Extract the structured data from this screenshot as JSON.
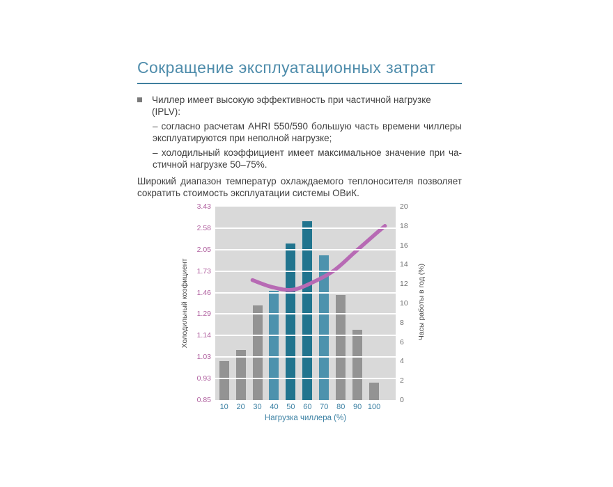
{
  "page": {
    "title": "Сокращение эксплуатационных затрат"
  },
  "content": {
    "bullet_item": "Чиллер имеет высокую эффективность при частичной нагрузке (IPLV):",
    "sub_items": [
      {
        "lines": [
          "– согласно расчетам AHRI 550/590 большую часть времени чиллеры",
          "эксплуатируются при неполной нагрузке;"
        ]
      },
      {
        "lines": [
          "– холодильный коэффициент имеет максимальное значение при ча-",
          "стичной нагрузке 50–75%."
        ]
      }
    ],
    "closing": {
      "lines": [
        "Широкий диапазон температур охлаждаемого теплоносителя позволяет",
        "сократить стоимость эксплуатации системы ОВиК."
      ]
    }
  },
  "chart_data": {
    "type": "bar",
    "title": "",
    "categories": [
      "10",
      "20",
      "30",
      "40",
      "50",
      "60",
      "70",
      "80",
      "90",
      "100"
    ],
    "bar_series": {
      "name": "Часы работы в год (%)",
      "axis": "right",
      "values": [
        4.0,
        5.2,
        9.8,
        11.3,
        16.2,
        18.5,
        15.0,
        10.9,
        7.3,
        1.8
      ]
    },
    "bar_color_keys": [
      "bar_gray",
      "bar_gray",
      "bar_gray",
      "bar_teal_light",
      "bar_teal_dark",
      "bar_teal_dark",
      "bar_teal_light",
      "bar_gray",
      "bar_gray",
      "bar_gray"
    ],
    "line_series": {
      "name": "Холодильный коэфициент (кривая)",
      "axis_units": "right-axis (%)",
      "points": [
        {
          "x": 27.0,
          "y": 12.4
        },
        {
          "x": 38.5,
          "y": 11.7
        },
        {
          "x": 51.0,
          "y": 11.4
        },
        {
          "x": 63.5,
          "y": 12.2
        },
        {
          "x": 76.0,
          "y": 13.4
        },
        {
          "x": 88.5,
          "y": 15.3
        },
        {
          "x": 101.0,
          "y": 17.2
        },
        {
          "x": 106.5,
          "y": 18.0
        }
      ]
    },
    "left_axis": {
      "label": "Холодильный коэфициент",
      "ticks": [
        "3.43",
        "2.58",
        "2.05",
        "1.73",
        "1.46",
        "1.29",
        "1.14",
        "1.03",
        "0.93",
        "0.85"
      ]
    },
    "right_axis": {
      "label": "Часы работы в год (%)",
      "ticks": [
        "20",
        "18",
        "16",
        "14",
        "12",
        "10",
        "8",
        "6",
        "4",
        "2",
        "0"
      ],
      "range": [
        0,
        20
      ]
    },
    "x_axis": {
      "label": "Нагрузка чиллера (%)",
      "ticks": [
        "10",
        "20",
        "30",
        "40",
        "50",
        "60",
        "70",
        "80",
        "90",
        "100"
      ]
    },
    "grid": "8 internal horizontal white lines on gray band",
    "legend": "none"
  },
  "colors": {
    "title_blue": "#4e8cab",
    "rule_blue": "#3f7f9e",
    "body_text": "#3f3f3f",
    "bullet_gray": "#7a7a7a",
    "axis_pink": "#b0609f",
    "axis_teal": "#3b80a3",
    "axis_gray": "#707070",
    "axis_title_gray": "#4a4a4a",
    "plot_bg": "#d9d9d9",
    "bar_gray": "#939393",
    "bar_teal_light": "#4d92ad",
    "bar_teal_dark": "#21748e",
    "line_purple": "#b76ab4"
  }
}
